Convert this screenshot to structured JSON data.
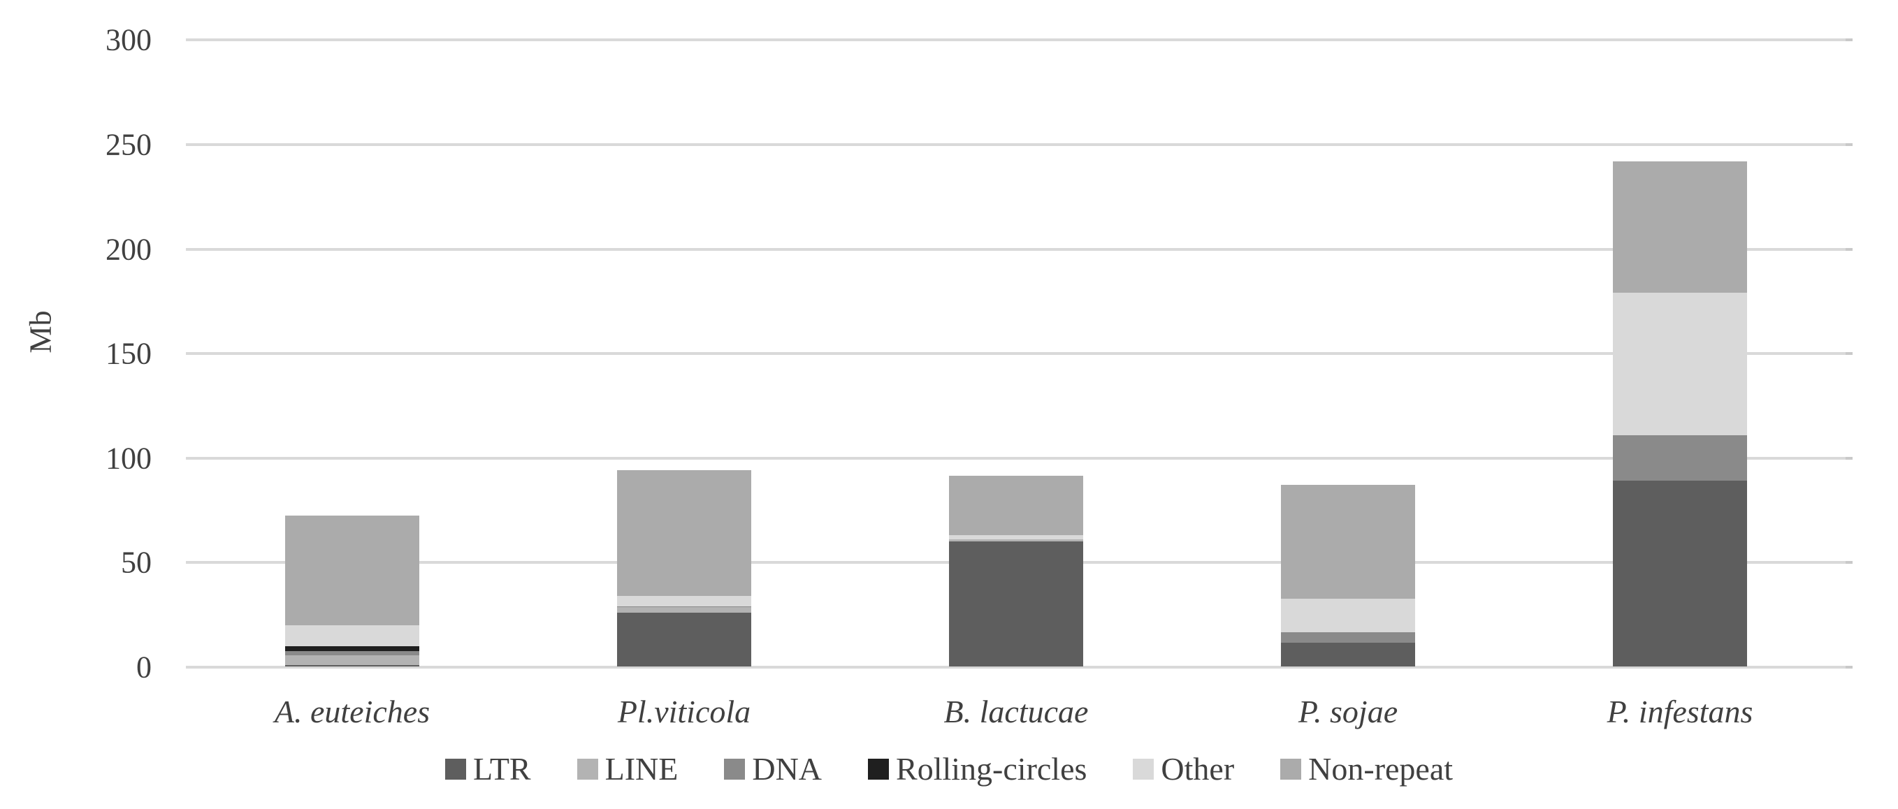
{
  "chart_data": {
    "type": "bar",
    "stacked": true,
    "title": "",
    "ylabel": "Mb",
    "xlabel": "",
    "ylim": [
      0,
      300
    ],
    "ytick_step": 50,
    "yticks": [
      "0",
      "50",
      "100",
      "150",
      "200",
      "250",
      "300"
    ],
    "ytick_values": [
      0,
      50,
      100,
      150,
      200,
      250,
      300
    ],
    "grid": "horizontal",
    "gridline_color": "#D9D9D9",
    "axis_text_color": "#404040",
    "legend_position": "bottom",
    "categories": [
      "A. euteiches",
      "Pl.viticola",
      "B. lactucae",
      "P. sojae",
      "P. infestans"
    ],
    "series": [
      {
        "name": "LTR",
        "color": "#5E5E5E",
        "values": [
          1,
          26,
          60,
          11.5,
          89
        ]
      },
      {
        "name": "LINE",
        "color": "#B3B3B3",
        "values": [
          4.5,
          2.5,
          1,
          0,
          0
        ]
      },
      {
        "name": "DNA",
        "color": "#8A8A8A",
        "values": [
          2,
          0.5,
          0,
          5,
          22
        ]
      },
      {
        "name": "Rolling-circles",
        "color": "#1F1F1F",
        "values": [
          2.5,
          0,
          0,
          0,
          0
        ]
      },
      {
        "name": "Other",
        "color": "#D9D9D9",
        "values": [
          10,
          5,
          2,
          16,
          68
        ]
      },
      {
        "name": "Non-repeat",
        "color": "#ABABAB",
        "values": [
          52.5,
          60,
          28.5,
          54.5,
          63
        ]
      }
    ],
    "stack_totals": [
      72.5,
      94,
      91.5,
      87,
      242
    ]
  }
}
